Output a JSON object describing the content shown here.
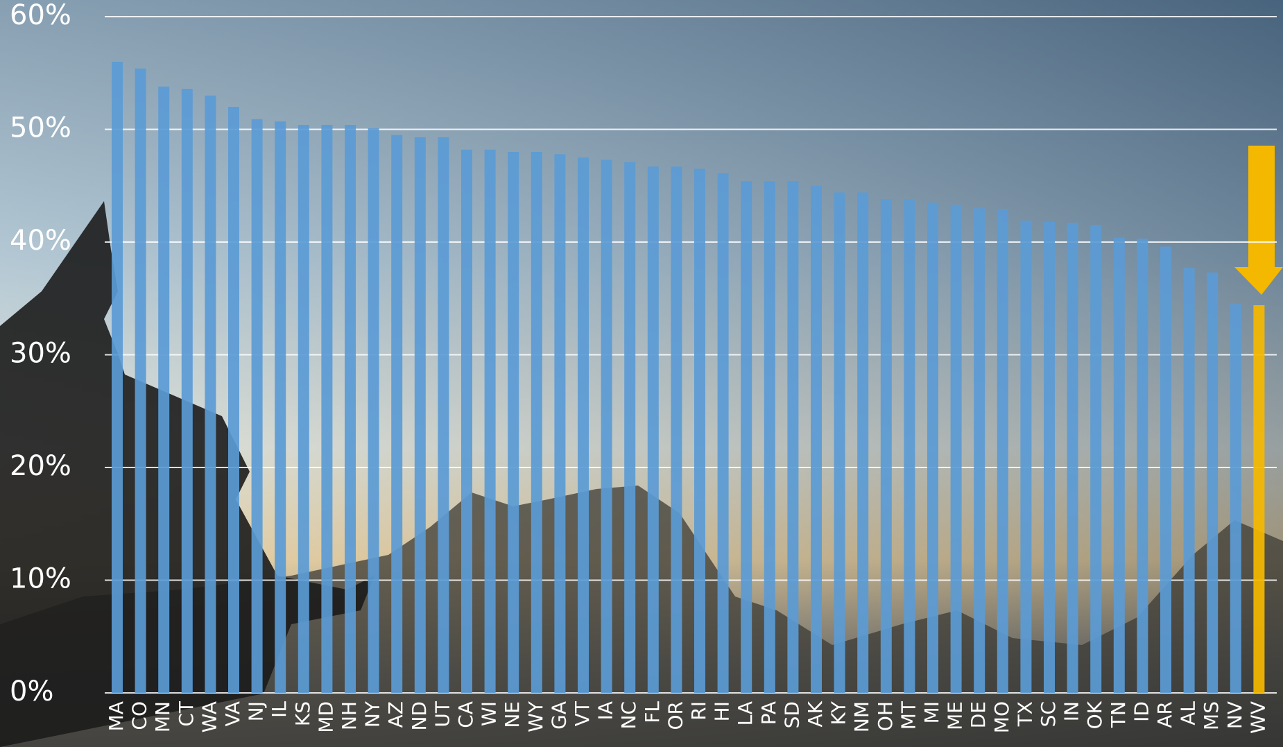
{
  "chart_data": {
    "type": "bar",
    "categories": [
      "MA",
      "CO",
      "MN",
      "CT",
      "WA",
      "VA",
      "NJ",
      "IL",
      "KS",
      "MD",
      "NH",
      "NY",
      "AZ",
      "ND",
      "UT",
      "CA",
      "WI",
      "NE",
      "WY",
      "GA",
      "VT",
      "IA",
      "NC",
      "FL",
      "OR",
      "RI",
      "HI",
      "LA",
      "PA",
      "SD",
      "AK",
      "KY",
      "NM",
      "OH",
      "MT",
      "MI",
      "ME",
      "DE",
      "MO",
      "TX",
      "SC",
      "IN",
      "OK",
      "TN",
      "ID",
      "AR",
      "AL",
      "MS",
      "NV",
      "WV"
    ],
    "values": [
      56.0,
      55.4,
      53.8,
      53.6,
      53.0,
      52.0,
      50.9,
      50.7,
      50.4,
      50.4,
      50.4,
      50.1,
      49.5,
      49.3,
      49.3,
      48.2,
      48.2,
      48.0,
      48.0,
      47.8,
      47.5,
      47.3,
      47.1,
      46.7,
      46.7,
      46.5,
      46.1,
      45.4,
      45.4,
      45.4,
      45.0,
      44.4,
      44.4,
      43.8,
      43.8,
      43.5,
      43.3,
      43.0,
      42.9,
      41.9,
      41.8,
      41.7,
      41.5,
      40.4,
      40.3,
      39.6,
      37.7,
      37.3,
      34.5,
      34.4
    ],
    "colors": [
      "#5b9bd5",
      "#5b9bd5",
      "#5b9bd5",
      "#5b9bd5",
      "#5b9bd5",
      "#5b9bd5",
      "#5b9bd5",
      "#5b9bd5",
      "#5b9bd5",
      "#5b9bd5",
      "#5b9bd5",
      "#5b9bd5",
      "#5b9bd5",
      "#5b9bd5",
      "#5b9bd5",
      "#5b9bd5",
      "#5b9bd5",
      "#5b9bd5",
      "#5b9bd5",
      "#5b9bd5",
      "#5b9bd5",
      "#5b9bd5",
      "#5b9bd5",
      "#5b9bd5",
      "#5b9bd5",
      "#5b9bd5",
      "#5b9bd5",
      "#5b9bd5",
      "#5b9bd5",
      "#5b9bd5",
      "#5b9bd5",
      "#5b9bd5",
      "#5b9bd5",
      "#5b9bd5",
      "#5b9bd5",
      "#5b9bd5",
      "#5b9bd5",
      "#5b9bd5",
      "#5b9bd5",
      "#5b9bd5",
      "#5b9bd5",
      "#5b9bd5",
      "#5b9bd5",
      "#5b9bd5",
      "#5b9bd5",
      "#5b9bd5",
      "#5b9bd5",
      "#5b9bd5",
      "#5b9bd5",
      "#f5b800"
    ],
    "ylim": [
      0,
      60
    ],
    "yticks": [
      {
        "value": 0,
        "label": "0%"
      },
      {
        "value": 10,
        "label": "10%"
      },
      {
        "value": 20,
        "label": "20%"
      },
      {
        "value": 30,
        "label": "30%"
      },
      {
        "value": 40,
        "label": "40%"
      },
      {
        "value": 50,
        "label": "50%"
      },
      {
        "value": 60,
        "label": "60%"
      }
    ],
    "grid": true
  }
}
